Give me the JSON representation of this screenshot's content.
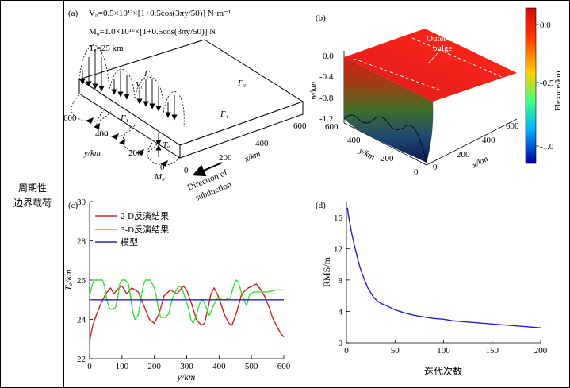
{
  "row_label": [
    "周期性",
    "边界载荷"
  ],
  "panel_a": {
    "label": "(a)",
    "equations": [
      "V₀=0.5×10¹²×[1+0.5cos(3πy/50)] N·m⁻¹",
      "M₀=1.0×10¹⁶×[1+0.5cos(3πy/50)] N",
      "Tₑ=25 km"
    ],
    "gamma_labels": [
      "Γ₂",
      "Γ₃",
      "Γ₁",
      "Γ₄"
    ],
    "v0_label": "V₀",
    "m0_label": "M₀",
    "te_label": "Tₑ",
    "x_axis_label": "x/km",
    "y_axis_label": "y/km",
    "x_ticks": [
      "0",
      "200",
      "400",
      "600"
    ],
    "y_ticks": [
      "600",
      "400",
      "200",
      "0"
    ],
    "direction_label": [
      "Direction of",
      "subduction"
    ]
  },
  "panel_b": {
    "label": "(b)",
    "annotation": [
      "Outer-rise",
      "bulge"
    ],
    "z_axis_label": "w/km",
    "z_ticks": [
      "0.0",
      "-0.4",
      "-0.8",
      "-1.2"
    ],
    "y_axis_label": "y/km",
    "y_ticks": [
      "600",
      "400",
      "200",
      "0"
    ],
    "x_axis_label": "x/km",
    "x_ticks": [
      "0",
      "200",
      "400",
      "600"
    ],
    "colorbar_label": "Flexure/km",
    "colorbar_ticks": [
      "0.0",
      "-0.5",
      "-1.0"
    ],
    "colorbar_colors": [
      "#cc1010",
      "#ff3300",
      "#ffd000",
      "#40ff80",
      "#00b0ff",
      "#0000a0"
    ]
  },
  "panel_c": {
    "label": "(c)",
    "chart_data": {
      "type": "line",
      "xlabel": "y/km",
      "ylabel": "Tₑ/km",
      "xlim": [
        0,
        600
      ],
      "ylim": [
        22,
        30
      ],
      "xticks": [
        "0",
        "100",
        "200",
        "300",
        "400",
        "500",
        "600"
      ],
      "yticks": [
        "22",
        "24",
        "26",
        "28",
        "30"
      ],
      "series": [
        {
          "name": "2-D反演结果",
          "color": "#d42020",
          "x": [
            0,
            10,
            20,
            35,
            50,
            65,
            75,
            90,
            100,
            115,
            130,
            150,
            170,
            185,
            200,
            215,
            230,
            250,
            270,
            290,
            300,
            315,
            330,
            345,
            355,
            365,
            375,
            385,
            400,
            415,
            430,
            440,
            455,
            470,
            490,
            505,
            515,
            525,
            540,
            555,
            565,
            580,
            590,
            600
          ],
          "y": [
            22.9,
            23.7,
            24.2,
            24.8,
            25.3,
            25.6,
            25.3,
            25.6,
            25.7,
            25.3,
            25.6,
            25.4,
            24.6,
            24.0,
            23.8,
            24.3,
            25.2,
            25.5,
            25.3,
            25.7,
            25.5,
            24.8,
            24.0,
            23.7,
            23.8,
            24.5,
            25.3,
            25.6,
            25.1,
            24.3,
            23.8,
            23.7,
            24.4,
            25.3,
            25.6,
            25.7,
            25.8,
            25.6,
            25.2,
            24.6,
            24.1,
            23.6,
            23.3,
            23.1
          ]
        },
        {
          "name": "3-D反演结果",
          "color": "#33e033",
          "x": [
            0,
            7,
            13,
            20,
            40,
            46,
            52,
            60,
            67,
            80,
            87,
            93,
            100,
            110,
            120,
            127,
            133,
            140,
            150,
            160,
            167,
            173,
            180,
            187,
            200,
            207,
            213,
            220,
            235,
            245,
            255,
            265,
            275,
            285,
            295,
            305,
            313,
            320,
            330,
            340,
            347,
            353,
            360,
            370,
            380,
            395,
            410,
            420,
            435,
            447,
            453,
            460,
            470,
            485,
            495,
            510,
            530,
            550,
            575,
            600
          ],
          "y": [
            25.2,
            25.7,
            26.0,
            26.0,
            26.0,
            25.7,
            25.1,
            24.6,
            24.5,
            24.6,
            25.1,
            25.8,
            26.0,
            26.0,
            25.8,
            25.1,
            24.4,
            24.0,
            24.2,
            25.2,
            25.8,
            26.0,
            26.0,
            26.0,
            25.6,
            25.1,
            24.5,
            24.1,
            24.1,
            24.3,
            25.0,
            25.4,
            25.7,
            25.6,
            25.1,
            24.6,
            24.0,
            23.8,
            24.2,
            24.8,
            25.0,
            24.9,
            24.6,
            24.2,
            24.6,
            25.1,
            25.0,
            25.0,
            25.1,
            25.8,
            26.0,
            25.9,
            25.3,
            24.7,
            25.3,
            25.4,
            25.4,
            25.4,
            25.5,
            25.5
          ]
        },
        {
          "name": "模型",
          "color": "#2020d0",
          "x": [
            0,
            600
          ],
          "y": [
            25.0,
            25.0
          ]
        }
      ]
    }
  },
  "panel_d": {
    "label": "(d)",
    "chart_data": {
      "type": "line",
      "xlabel": "迭代次数",
      "ylabel": "RMS/m",
      "xlim": [
        0,
        200
      ],
      "ylim": [
        0,
        18
      ],
      "xticks": [
        "0",
        "50",
        "100",
        "150",
        "200"
      ],
      "yticks": [
        "0",
        "4",
        "8",
        "12",
        "16"
      ],
      "series": [
        {
          "name": "RMS",
          "color": "#2020d0",
          "x": [
            1,
            2,
            3,
            4,
            5,
            6,
            7,
            8,
            10,
            12,
            14,
            16,
            18,
            20,
            22,
            25,
            28,
            32,
            36,
            40,
            45,
            50,
            55,
            60,
            70,
            80,
            90,
            100,
            110,
            120,
            130,
            140,
            150,
            160,
            170,
            180,
            190,
            200
          ],
          "y": [
            17.2,
            16.3,
            15.6,
            15.0,
            14.2,
            13.6,
            13.1,
            12.5,
            11.5,
            10.5,
            9.6,
            8.9,
            8.2,
            7.6,
            7.0,
            6.4,
            5.8,
            5.3,
            5.0,
            4.8,
            4.5,
            4.2,
            4.0,
            3.8,
            3.5,
            3.3,
            3.1,
            3.0,
            2.8,
            2.7,
            2.6,
            2.5,
            2.4,
            2.3,
            2.2,
            2.1,
            2.0,
            1.9
          ]
        }
      ]
    }
  }
}
